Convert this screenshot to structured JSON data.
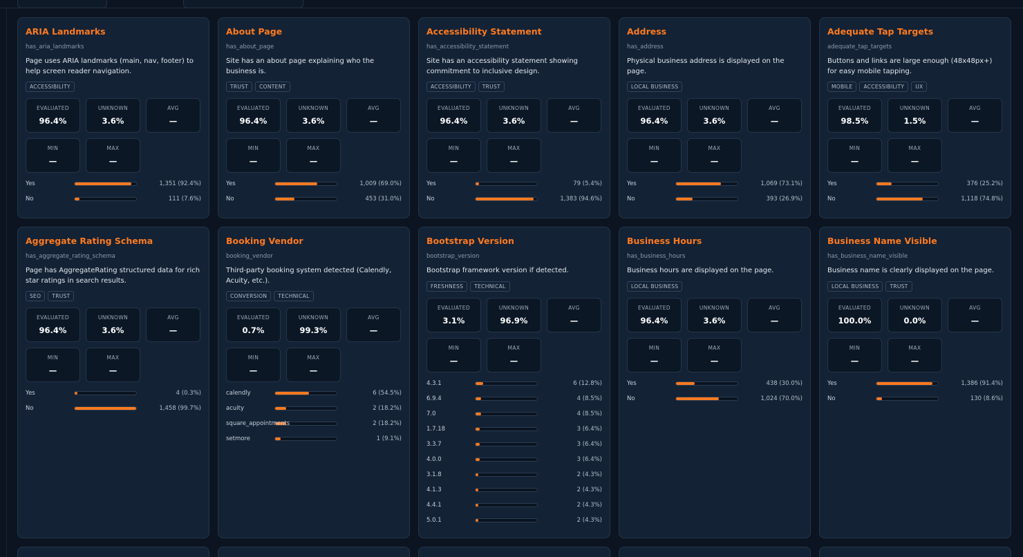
{
  "accent_color": "#ff7a1f",
  "stat_labels": {
    "evaluated": "EVALUATED",
    "unknown": "UNKNOWN",
    "avg": "AVG",
    "min": "MIN",
    "max": "MAX"
  },
  "rows": [
    [
      {
        "title": "ARIA Landmarks",
        "key": "has_aria_landmarks",
        "desc": "Page uses ARIA landmarks (main, nav, footer) to help screen reader navigation.",
        "tags": [
          "ACCESSIBILITY"
        ],
        "evaluated": "96.4%",
        "unknown": "3.6%",
        "avg": "—",
        "min": "—",
        "max": "—",
        "bars": [
          {
            "label": "Yes",
            "value": "1,351 (92.4%)",
            "pct": 92.4
          },
          {
            "label": "No",
            "value": "111 (7.6%)",
            "pct": 7.6
          }
        ]
      },
      {
        "title": "About Page",
        "key": "has_about_page",
        "desc": "Site has an about page explaining who the business is.",
        "tags": [
          "TRUST",
          "CONTENT"
        ],
        "evaluated": "96.4%",
        "unknown": "3.6%",
        "avg": "—",
        "min": "—",
        "max": "—",
        "bars": [
          {
            "label": "Yes",
            "value": "1,009 (69.0%)",
            "pct": 69.0
          },
          {
            "label": "No",
            "value": "453 (31.0%)",
            "pct": 31.0
          }
        ]
      },
      {
        "title": "Accessibility Statement",
        "key": "has_accessibility_statement",
        "desc": "Site has an accessibility statement showing commitment to inclusive design.",
        "tags": [
          "ACCESSIBILITY",
          "TRUST"
        ],
        "evaluated": "96.4%",
        "unknown": "3.6%",
        "avg": "—",
        "min": "—",
        "max": "—",
        "bars": [
          {
            "label": "Yes",
            "value": "79 (5.4%)",
            "pct": 5.4
          },
          {
            "label": "No",
            "value": "1,383 (94.6%)",
            "pct": 94.6
          }
        ]
      },
      {
        "title": "Address",
        "key": "has_address",
        "desc": "Physical business address is displayed on the page.",
        "tags": [
          "LOCAL BUSINESS"
        ],
        "evaluated": "96.4%",
        "unknown": "3.6%",
        "avg": "—",
        "min": "—",
        "max": "—",
        "bars": [
          {
            "label": "Yes",
            "value": "1,069 (73.1%)",
            "pct": 73.1
          },
          {
            "label": "No",
            "value": "393 (26.9%)",
            "pct": 26.9
          }
        ]
      },
      {
        "title": "Adequate Tap Targets",
        "key": "adequate_tap_targets",
        "desc": "Buttons and links are large enough (48x48px+) for easy mobile tapping.",
        "tags": [
          "MOBILE",
          "ACCESSIBILITY",
          "UX"
        ],
        "evaluated": "98.5%",
        "unknown": "1.5%",
        "avg": "—",
        "min": "—",
        "max": "—",
        "bars": [
          {
            "label": "Yes",
            "value": "376 (25.2%)",
            "pct": 25.2
          },
          {
            "label": "No",
            "value": "1,118 (74.8%)",
            "pct": 74.8
          }
        ]
      }
    ],
    [
      {
        "title": "Aggregate Rating Schema",
        "key": "has_aggregate_rating_schema",
        "desc": "Page has AggregateRating structured data for rich star ratings in search results.",
        "tags": [
          "SEO",
          "TRUST"
        ],
        "evaluated": "96.4%",
        "unknown": "3.6%",
        "avg": "—",
        "min": "—",
        "max": "—",
        "bars": [
          {
            "label": "Yes",
            "value": "4 (0.3%)",
            "pct": 0.3
          },
          {
            "label": "No",
            "value": "1,458 (99.7%)",
            "pct": 99.7
          }
        ]
      },
      {
        "title": "Booking Vendor",
        "key": "booking_vendor",
        "desc": "Third-party booking system detected (Calendly, Acuity, etc.).",
        "tags": [
          "CONVERSION",
          "TECHNICAL"
        ],
        "evaluated": "0.7%",
        "unknown": "99.3%",
        "avg": "—",
        "min": "—",
        "max": "—",
        "bars": [
          {
            "label": "calendly",
            "value": "6 (54.5%)",
            "pct": 54.5
          },
          {
            "label": "acuity",
            "value": "2 (18.2%)",
            "pct": 18.2
          },
          {
            "label": "square_appointments",
            "value": "2 (18.2%)",
            "pct": 18.2
          },
          {
            "label": "setmore",
            "value": "1 (9.1%)",
            "pct": 9.1
          }
        ]
      },
      {
        "title": "Bootstrap Version",
        "key": "bootstrap_version",
        "desc": "Bootstrap framework version if detected.",
        "tags": [
          "FRESHNESS",
          "TECHNICAL"
        ],
        "evaluated": "3.1%",
        "unknown": "96.9%",
        "avg": "—",
        "min": "—",
        "max": "—",
        "bars": [
          {
            "label": "4.3.1",
            "value": "6 (12.8%)",
            "pct": 12.8
          },
          {
            "label": "6.9.4",
            "value": "4 (8.5%)",
            "pct": 8.5
          },
          {
            "label": "7.0",
            "value": "4 (8.5%)",
            "pct": 8.5
          },
          {
            "label": "1.7.18",
            "value": "3 (6.4%)",
            "pct": 6.4
          },
          {
            "label": "3.3.7",
            "value": "3 (6.4%)",
            "pct": 6.4
          },
          {
            "label": "4.0.0",
            "value": "3 (6.4%)",
            "pct": 6.4
          },
          {
            "label": "3.1.8",
            "value": "2 (4.3%)",
            "pct": 4.3
          },
          {
            "label": "4.1.3",
            "value": "2 (4.3%)",
            "pct": 4.3
          },
          {
            "label": "4.4.1",
            "value": "2 (4.3%)",
            "pct": 4.3
          },
          {
            "label": "5.0.1",
            "value": "2 (4.3%)",
            "pct": 4.3
          }
        ]
      },
      {
        "title": "Business Hours",
        "key": "has_business_hours",
        "desc": "Business hours are displayed on the page.",
        "tags": [
          "LOCAL BUSINESS"
        ],
        "evaluated": "96.4%",
        "unknown": "3.6%",
        "avg": "—",
        "min": "—",
        "max": "—",
        "bars": [
          {
            "label": "Yes",
            "value": "438 (30.0%)",
            "pct": 30.0
          },
          {
            "label": "No",
            "value": "1,024 (70.0%)",
            "pct": 70.0
          }
        ]
      },
      {
        "title": "Business Name Visible",
        "key": "has_business_name_visible",
        "desc": "Business name is clearly displayed on the page.",
        "tags": [
          "LOCAL BUSINESS",
          "TRUST"
        ],
        "evaluated": "100.0%",
        "unknown": "0.0%",
        "avg": "—",
        "min": "—",
        "max": "—",
        "bars": [
          {
            "label": "Yes",
            "value": "1,386 (91.4%)",
            "pct": 91.4
          },
          {
            "label": "No",
            "value": "130 (8.6%)",
            "pct": 8.6
          }
        ]
      }
    ]
  ]
}
